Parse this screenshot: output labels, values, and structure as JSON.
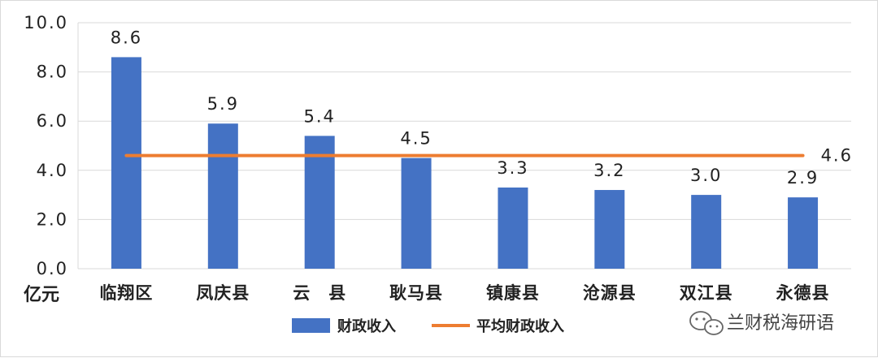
{
  "chart_data": {
    "type": "bar",
    "categories": [
      "临翔区",
      "凤庆县",
      "云　县",
      "耿马县",
      "镇康县",
      "沧源县",
      "双江县",
      "永德县"
    ],
    "series": [
      {
        "name": "财政收入",
        "type": "bar",
        "color": "#4472C4",
        "values": [
          8.6,
          5.9,
          5.4,
          4.5,
          3.3,
          3.2,
          3.0,
          2.9
        ]
      },
      {
        "name": "平均财政收入",
        "type": "line",
        "color": "#ED7D31",
        "values": [
          4.6,
          4.6,
          4.6,
          4.6,
          4.6,
          4.6,
          4.6,
          4.6
        ]
      }
    ],
    "data_labels": [
      "8.6",
      "5.9",
      "5.4",
      "4.5",
      "3.3",
      "3.2",
      "3.0",
      "2.9"
    ],
    "line_label": "4.6",
    "y_ticks": [
      "0.0",
      "2.0",
      "4.0",
      "6.0",
      "8.0",
      "10.0"
    ],
    "y_tick_values": [
      0,
      2,
      4,
      6,
      8,
      10
    ],
    "ylim": [
      0,
      10
    ],
    "ylabel": "亿元",
    "grid": true,
    "legend_position": "bottom"
  },
  "watermark": {
    "text": "兰财税海研语",
    "icon": "wechat-icon"
  }
}
